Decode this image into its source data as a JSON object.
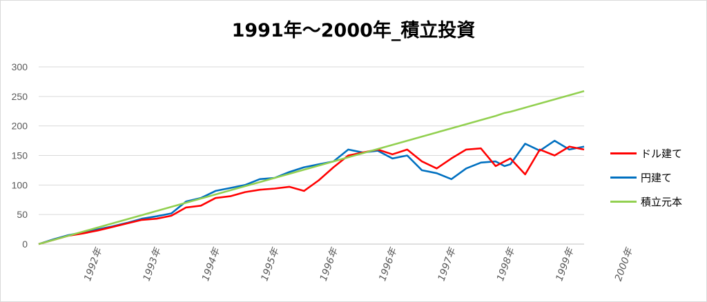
{
  "chart_data": {
    "type": "line",
    "title": "1991年〜2000年_積立投資",
    "xlabel": "",
    "ylabel": "",
    "ylim": [
      0,
      300
    ],
    "yticks": [
      0,
      50,
      100,
      150,
      200,
      250,
      300
    ],
    "xlim": [
      0,
      9.25
    ],
    "x_tick_labels": [
      "1992年",
      "1993年",
      "1994年",
      "1995年",
      "1996年",
      "1996年",
      "1997年",
      "1998年",
      "1999年",
      "2000年"
    ],
    "grid": true,
    "legend_position": "right",
    "x": [
      0,
      0.25,
      0.5,
      0.75,
      1.0,
      1.25,
      1.5,
      1.75,
      2.0,
      2.25,
      2.5,
      2.75,
      3.0,
      3.25,
      3.5,
      3.75,
      4.0,
      4.25,
      4.5,
      4.75,
      5.0,
      5.25,
      5.5,
      5.75,
      6.0,
      6.25,
      6.5,
      6.75,
      7.0,
      7.25,
      7.5,
      7.75,
      7.9,
      8.0,
      8.25,
      8.5,
      8.75,
      9.0,
      9.25
    ],
    "series": [
      {
        "name": "ドル建て",
        "color": "#ff0000",
        "values": [
          0,
          7,
          14,
          18,
          23,
          29,
          35,
          41,
          43,
          48,
          62,
          65,
          78,
          81,
          88,
          92,
          94,
          97,
          90,
          108,
          130,
          150,
          155,
          160,
          152,
          160,
          140,
          128,
          145,
          160,
          162,
          132,
          140,
          145,
          118,
          160,
          150,
          165,
          160
        ]
      },
      {
        "name": "円建て",
        "color": "#0070c0",
        "values": [
          0,
          8,
          15,
          20,
          25,
          30,
          36,
          43,
          47,
          52,
          72,
          78,
          90,
          95,
          100,
          110,
          112,
          122,
          130,
          135,
          140,
          160,
          155,
          158,
          145,
          150,
          125,
          120,
          110,
          128,
          138,
          140,
          132,
          135,
          170,
          158,
          175,
          160,
          165
        ]
      },
      {
        "name": "積立元本",
        "color": "#92d050",
        "values": [
          0,
          7,
          14,
          21,
          28,
          35,
          42,
          49,
          56,
          63,
          70,
          77,
          84,
          91,
          98,
          105,
          112,
          119,
          126,
          133,
          140,
          147,
          154,
          161,
          168,
          175,
          182,
          189,
          196,
          203,
          210,
          217,
          222,
          224,
          231,
          238,
          245,
          252,
          259
        ]
      }
    ]
  }
}
